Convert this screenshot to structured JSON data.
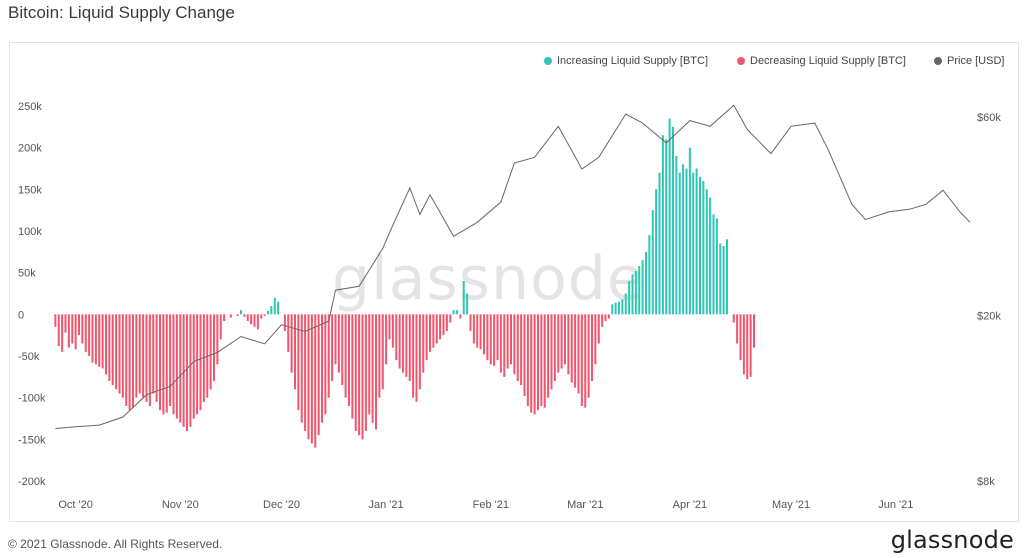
{
  "header": {
    "title": "Bitcoin: Liquid Supply Change"
  },
  "footer": {
    "copyright": "© 2021 Glassnode. All Rights Reserved.",
    "logo_text": "glassnode"
  },
  "watermark": "glassnode",
  "legend": [
    {
      "label": "Increasing Liquid Supply [BTC]",
      "color": "#2ec7b4"
    },
    {
      "label": "Decreasing Liquid Supply [BTC]",
      "color": "#f2566e"
    },
    {
      "label": "Price [USD]",
      "color": "#666666"
    }
  ],
  "chart_data": {
    "type": "bar",
    "title": "Bitcoin: Liquid Supply Change",
    "x_range": [
      "2020-09-24",
      "2021-06-23"
    ],
    "x_ticks": [
      {
        "date": "2020-10-01",
        "label": "Oct '20"
      },
      {
        "date": "2020-11-01",
        "label": "Nov '20"
      },
      {
        "date": "2020-12-01",
        "label": "Dec '20"
      },
      {
        "date": "2021-01-01",
        "label": "Jan '21"
      },
      {
        "date": "2021-02-01",
        "label": "Feb '21"
      },
      {
        "date": "2021-03-01",
        "label": "Mar '21"
      },
      {
        "date": "2021-04-01",
        "label": "Apr '21"
      },
      {
        "date": "2021-05-01",
        "label": "May '21"
      },
      {
        "date": "2021-06-01",
        "label": "Jun '21"
      }
    ],
    "y_left": {
      "ylim": [
        -200000,
        250000
      ],
      "ticks": [
        {
          "value": 250000,
          "label": "250k"
        },
        {
          "value": 200000,
          "label": "200k"
        },
        {
          "value": 150000,
          "label": "150k"
        },
        {
          "value": 100000,
          "label": "100k"
        },
        {
          "value": 50000,
          "label": "50k"
        },
        {
          "value": 0,
          "label": "0"
        },
        {
          "value": -50000,
          "label": "-50k"
        },
        {
          "value": -100000,
          "label": "-100k"
        },
        {
          "value": -150000,
          "label": "-150k"
        },
        {
          "value": -200000,
          "label": "-200k"
        }
      ]
    },
    "y_right": {
      "scale": "log",
      "ylim": [
        8000,
        60000
      ],
      "ticks": [
        {
          "value": 60000,
          "label": "$60k"
        },
        {
          "value": 20000,
          "label": "$20k"
        },
        {
          "value": 8000,
          "label": "$8k"
        }
      ]
    },
    "series": [
      {
        "name": "Liquid Supply Change [BTC]",
        "color_positive": "#2ec7b4",
        "color_negative": "#f2566e",
        "start_date": "2020-09-25",
        "values": [
          -15000,
          -38000,
          -45000,
          -22000,
          -40000,
          -35000,
          -42000,
          -25000,
          -35000,
          -45000,
          -50000,
          -58000,
          -60000,
          -63000,
          -65000,
          -72000,
          -80000,
          -85000,
          -90000,
          -95000,
          -100000,
          -110000,
          -115000,
          -112000,
          -100000,
          -95000,
          -100000,
          -105000,
          -110000,
          -95000,
          -105000,
          -115000,
          -120000,
          -118000,
          -110000,
          -120000,
          -125000,
          -130000,
          -135000,
          -140000,
          -135000,
          -125000,
          -120000,
          -115000,
          -105000,
          -100000,
          -90000,
          -80000,
          -60000,
          -30000,
          -8000,
          0,
          -4000,
          0,
          -2000,
          5000,
          -3000,
          -8000,
          -12000,
          -15000,
          -18000,
          -5000,
          -2000,
          4000,
          10000,
          20000,
          15000,
          0,
          -20000,
          -45000,
          -70000,
          -90000,
          -115000,
          -130000,
          -140000,
          -150000,
          -155000,
          -160000,
          -145000,
          -130000,
          -120000,
          -100000,
          -80000,
          -60000,
          -70000,
          -85000,
          -100000,
          -110000,
          -125000,
          -140000,
          -145000,
          -150000,
          -140000,
          -120000,
          -130000,
          -138000,
          -100000,
          -90000,
          -60000,
          -30000,
          -40000,
          -55000,
          -65000,
          -70000,
          -75000,
          -80000,
          -100000,
          -105000,
          -90000,
          -70000,
          -55000,
          -45000,
          -40000,
          -35000,
          -30000,
          -25000,
          -20000,
          -10000,
          5000,
          5000,
          -5000,
          40000,
          25000,
          -20000,
          -35000,
          -40000,
          -42000,
          -48000,
          -55000,
          -60000,
          -62000,
          -55000,
          -70000,
          -75000,
          -65000,
          -60000,
          -72000,
          -80000,
          -85000,
          -98000,
          -110000,
          -118000,
          -120000,
          -115000,
          -110000,
          -112000,
          -100000,
          -90000,
          -80000,
          -70000,
          -65000,
          -60000,
          -72000,
          -82000,
          -88000,
          -95000,
          -110000,
          -112000,
          -100000,
          -80000,
          -60000,
          -35000,
          -15000,
          -8000,
          -5000,
          12000,
          14000,
          15000,
          18000,
          25000,
          40000,
          48000,
          52000,
          58000,
          65000,
          75000,
          95000,
          125000,
          150000,
          170000,
          215000,
          210000,
          235000,
          225000,
          190000,
          170000,
          180000,
          175000,
          200000,
          170000,
          175000,
          165000,
          160000,
          150000,
          140000,
          120000,
          115000,
          85000,
          82000,
          90000,
          0,
          -10000,
          -35000,
          -55000,
          -72000,
          -78000,
          -75000,
          -40000
        ]
      },
      {
        "name": "Price [USD]",
        "color": "#666666",
        "points": [
          [
            "2020-09-25",
            10700
          ],
          [
            "2020-10-01",
            10800
          ],
          [
            "2020-10-08",
            10900
          ],
          [
            "2020-10-15",
            11400
          ],
          [
            "2020-10-22",
            12900
          ],
          [
            "2020-10-29",
            13500
          ],
          [
            "2020-11-05",
            15500
          ],
          [
            "2020-11-12",
            16300
          ],
          [
            "2020-11-19",
            17800
          ],
          [
            "2020-11-26",
            17100
          ],
          [
            "2020-12-01",
            19000
          ],
          [
            "2020-12-08",
            18300
          ],
          [
            "2020-12-15",
            19400
          ],
          [
            "2020-12-17",
            23000
          ],
          [
            "2020-12-24",
            23500
          ],
          [
            "2020-12-31",
            29000
          ],
          [
            "2021-01-03",
            33000
          ],
          [
            "2021-01-08",
            40500
          ],
          [
            "2021-01-11",
            35000
          ],
          [
            "2021-01-14",
            39000
          ],
          [
            "2021-01-21",
            31000
          ],
          [
            "2021-01-28",
            33500
          ],
          [
            "2021-02-04",
            37500
          ],
          [
            "2021-02-08",
            46500
          ],
          [
            "2021-02-14",
            48000
          ],
          [
            "2021-02-21",
            57000
          ],
          [
            "2021-02-28",
            45000
          ],
          [
            "2021-03-05",
            48000
          ],
          [
            "2021-03-13",
            61000
          ],
          [
            "2021-03-18",
            58000
          ],
          [
            "2021-03-25",
            52000
          ],
          [
            "2021-04-01",
            58800
          ],
          [
            "2021-04-07",
            57000
          ],
          [
            "2021-04-14",
            64000
          ],
          [
            "2021-04-18",
            56000
          ],
          [
            "2021-04-25",
            49000
          ],
          [
            "2021-05-01",
            57000
          ],
          [
            "2021-05-08",
            58000
          ],
          [
            "2021-05-12",
            50000
          ],
          [
            "2021-05-19",
            37000
          ],
          [
            "2021-05-23",
            34000
          ],
          [
            "2021-05-30",
            35500
          ],
          [
            "2021-06-05",
            36000
          ],
          [
            "2021-06-10",
            37000
          ],
          [
            "2021-06-15",
            40000
          ],
          [
            "2021-06-20",
            35500
          ],
          [
            "2021-06-23",
            33500
          ]
        ]
      }
    ]
  }
}
